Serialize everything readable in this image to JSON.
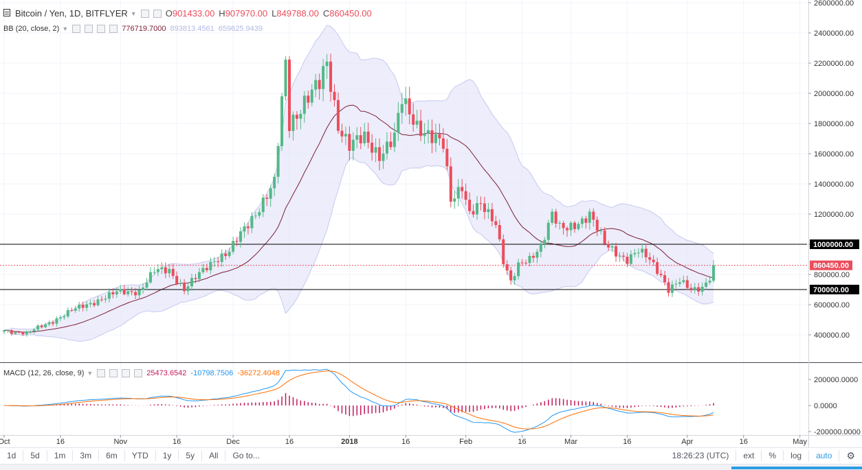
{
  "colors": {
    "up": "#53b987",
    "down": "#eb4d5c",
    "band_fill": "#e6e6fa",
    "band_line": "#c7c9f0",
    "basis": "#7b1d35",
    "macd": "#2196f3",
    "signal": "#ff6d00",
    "hist": "#c2185b",
    "text": "#4a4a4a"
  },
  "header": {
    "symbol": "Bitcoin / Yen, 1D, BITFLYER",
    "o_label": "O",
    "o_value": "901433.00",
    "h_label": "H",
    "h_value": "907970.00",
    "l_label": "L",
    "l_value": "849788.00",
    "c_label": "C",
    "c_value": "860450.00"
  },
  "bb": {
    "label": "BB (20, close, 2)",
    "basis": "776719.7000",
    "upper": "893813.4561",
    "lower": "659625.9439"
  },
  "macd_legend": {
    "label": "MACD (12, 26, close, 9)",
    "hist": "25473.6542",
    "macd": "-10798.7506",
    "signal": "-36272.4048"
  },
  "price_axis": [
    "2600000.00",
    "2400000.00",
    "2200000.00",
    "2000000.00",
    "1800000.00",
    "1600000.00",
    "1400000.00",
    "1200000.00",
    "1000000.00",
    "800000.00",
    "600000.00",
    "400000.00"
  ],
  "price_ticks_values": [
    2600000,
    2400000,
    2200000,
    2000000,
    1800000,
    1600000,
    1400000,
    1200000,
    1000000,
    800000,
    600000,
    400000
  ],
  "hlines": [
    {
      "label": "1000000.00",
      "value": 1000000
    },
    {
      "label": "700000.00",
      "value": 700000
    }
  ],
  "last_price": {
    "label": "860450.00",
    "value": 860450
  },
  "macd_axis": [
    {
      "label": "200000.0000",
      "value": 200000
    },
    {
      "label": "0.0000",
      "value": 0
    },
    {
      "label": "-200000.0000",
      "value": -200000
    }
  ],
  "time_axis": [
    "Oct",
    "16",
    "Nov",
    "16",
    "Dec",
    "16",
    "2018",
    "16",
    "Feb",
    "16",
    "Mar",
    "16",
    "Apr",
    "16",
    "May"
  ],
  "time_axis_days": [
    0,
    15,
    31,
    46,
    61,
    76,
    92,
    107,
    123,
    138,
    151,
    166,
    182,
    197,
    212
  ],
  "chart_data": {
    "type": "candlestick",
    "x_start": "2017-09-22",
    "ylim": [
      250000,
      2620000
    ],
    "keypoints": [
      [
        0,
        430000
      ],
      [
        6,
        410000
      ],
      [
        12,
        480000
      ],
      [
        18,
        560000
      ],
      [
        24,
        620000
      ],
      [
        30,
        680000
      ],
      [
        36,
        690000
      ],
      [
        40,
        820000
      ],
      [
        44,
        830000
      ],
      [
        48,
        700000
      ],
      [
        52,
        800000
      ],
      [
        56,
        900000
      ],
      [
        60,
        950000
      ],
      [
        64,
        1100000
      ],
      [
        68,
        1250000
      ],
      [
        72,
        1400000
      ],
      [
        75,
        2200000
      ],
      [
        76,
        1800000
      ],
      [
        80,
        1950000
      ],
      [
        84,
        2050000
      ],
      [
        86,
        2200000
      ],
      [
        89,
        1800000
      ],
      [
        92,
        1650000
      ],
      [
        96,
        1700000
      ],
      [
        100,
        1600000
      ],
      [
        104,
        1700000
      ],
      [
        106,
        1950000
      ],
      [
        110,
        1800000
      ],
      [
        114,
        1700000
      ],
      [
        117,
        1650000
      ],
      [
        119,
        1300000
      ],
      [
        122,
        1400000
      ],
      [
        124,
        1200000
      ],
      [
        127,
        1250000
      ],
      [
        131,
        1150000
      ],
      [
        133,
        900000
      ],
      [
        135,
        750000
      ],
      [
        137,
        850000
      ],
      [
        140,
        900000
      ],
      [
        143,
        1000000
      ],
      [
        146,
        1200000
      ],
      [
        148,
        1100000
      ],
      [
        150,
        1100000
      ],
      [
        153,
        1150000
      ],
      [
        156,
        1200000
      ],
      [
        158,
        1100000
      ],
      [
        160,
        1000000
      ],
      [
        163,
        950000
      ],
      [
        166,
        900000
      ],
      [
        169,
        950000
      ],
      [
        172,
        900000
      ],
      [
        175,
        800000
      ],
      [
        177,
        700000
      ],
      [
        180,
        750000
      ],
      [
        183,
        700000
      ],
      [
        186,
        720000
      ],
      [
        188,
        780000
      ],
      [
        189,
        860450
      ]
    ],
    "bb": {
      "period": 20,
      "mult": 2
    },
    "macd": {
      "fast": 12,
      "slow": 26,
      "signal": 9
    },
    "hlines": [
      1000000,
      700000
    ],
    "last": 860450
  },
  "toolbar": {
    "ranges": [
      "1d",
      "5d",
      "1m",
      "3m",
      "6m",
      "YTD",
      "1y",
      "5y",
      "All",
      "Go to..."
    ],
    "time": "18:26:23 (UTC)",
    "right": [
      "ext",
      "%",
      "log",
      "auto"
    ],
    "gear": "gear-icon"
  }
}
